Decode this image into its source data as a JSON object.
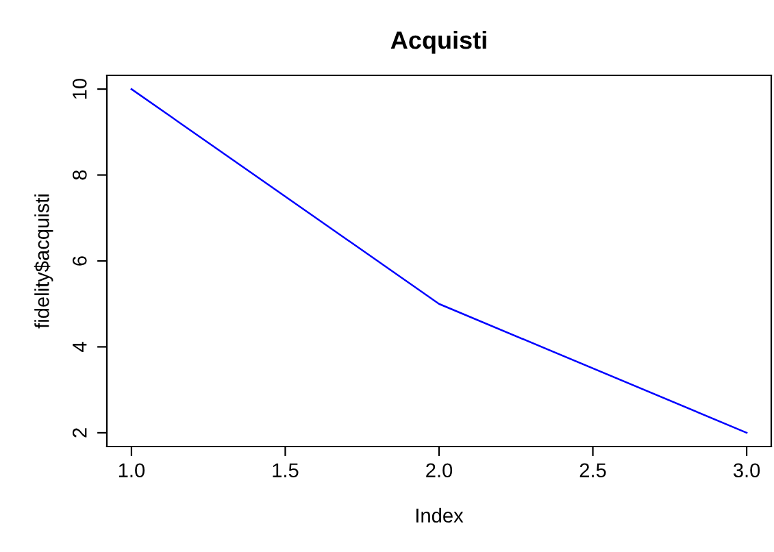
{
  "chart_data": {
    "type": "line",
    "title": "Acquisti",
    "xlabel": "Index",
    "ylabel": "fidelity$acquisti",
    "x": [
      1,
      2,
      3
    ],
    "series": [
      {
        "color": "#0000ff",
        "values": [
          10,
          5,
          2
        ]
      }
    ],
    "xlim": [
      0.92,
      3.08
    ],
    "ylim": [
      1.68,
      10.32
    ],
    "xticks": [
      {
        "value": 1,
        "label": "1.0"
      },
      {
        "value": 1.5,
        "label": "1.5"
      },
      {
        "value": 2,
        "label": "2.0"
      },
      {
        "value": 2.5,
        "label": "2.5"
      },
      {
        "value": 3,
        "label": "3.0"
      }
    ],
    "yticks": [
      2,
      4,
      6,
      8,
      10
    ],
    "grid": false,
    "marker": "none",
    "line_style": "solid"
  }
}
